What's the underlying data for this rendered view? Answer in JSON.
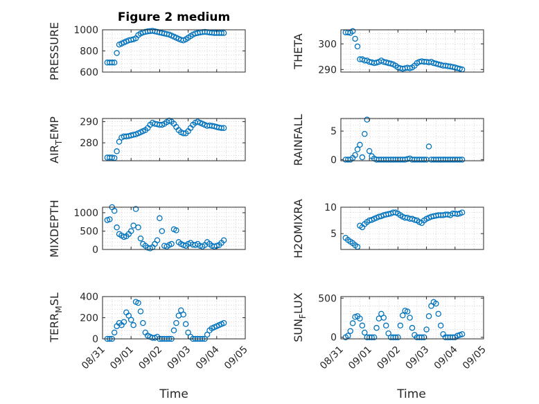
{
  "figure": {
    "title": "Figure 2 medium",
    "xlabel": "Time",
    "marker_color": "#0072BD",
    "x_ticks": [
      "08/31",
      "09/01",
      "09/02",
      "09/03",
      "09/04",
      "09/05"
    ]
  },
  "chart_data": [
    {
      "type": "scatter",
      "column": "left",
      "ylabel": "PRESSURE",
      "ylim": [
        600,
        1000
      ],
      "yticks": [
        600,
        800,
        1000
      ],
      "x": [
        "08/31 04:00",
        "08/31 06:00",
        "08/31 08:00",
        "08/31 10:00",
        "08/31 12:00",
        "08/31 14:00",
        "08/31 16:00",
        "08/31 18:00",
        "08/31 20:00",
        "08/31 22:00",
        "09/01 00:00",
        "09/01 02:00",
        "09/01 04:00",
        "09/01 06:00",
        "09/01 08:00",
        "09/01 10:00",
        "09/01 12:00",
        "09/01 14:00",
        "09/01 16:00",
        "09/01 18:00",
        "09/01 20:00",
        "09/01 22:00",
        "09/02 00:00",
        "09/02 02:00",
        "09/02 04:00",
        "09/02 06:00",
        "09/02 08:00",
        "09/02 10:00",
        "09/02 12:00",
        "09/02 14:00",
        "09/02 16:00",
        "09/02 18:00",
        "09/02 20:00",
        "09/02 22:00",
        "09/03 00:00",
        "09/03 02:00",
        "09/03 04:00",
        "09/03 06:00",
        "09/03 08:00",
        "09/03 10:00",
        "09/03 12:00",
        "09/03 14:00",
        "09/03 16:00",
        "09/03 18:00",
        "09/03 20:00",
        "09/03 22:00",
        "09/04 00:00",
        "09/04 02:00",
        "09/04 04:00",
        "09/04 06:00"
      ],
      "y": [
        690,
        690,
        690,
        690,
        780,
        860,
        870,
        880,
        890,
        900,
        905,
        910,
        920,
        950,
        965,
        975,
        980,
        985,
        988,
        990,
        985,
        980,
        975,
        970,
        965,
        960,
        955,
        945,
        935,
        925,
        915,
        905,
        900,
        910,
        925,
        940,
        955,
        965,
        970,
        975,
        978,
        980,
        978,
        975,
        972,
        970,
        970,
        970,
        970,
        970
      ]
    },
    {
      "type": "scatter",
      "column": "right",
      "ylabel": "THETA",
      "ylim": [
        289,
        305.5
      ],
      "yticks": [
        290,
        300
      ],
      "x": [
        "08/31 04:00",
        "08/31 06:00",
        "08/31 08:00",
        "08/31 10:00",
        "08/31 12:00",
        "08/31 14:00",
        "08/31 16:00",
        "08/31 18:00",
        "08/31 20:00",
        "08/31 22:00",
        "09/01 00:00",
        "09/01 02:00",
        "09/01 04:00",
        "09/01 06:00",
        "09/01 08:00",
        "09/01 10:00",
        "09/01 12:00",
        "09/01 14:00",
        "09/01 16:00",
        "09/01 18:00",
        "09/01 20:00",
        "09/01 22:00",
        "09/02 00:00",
        "09/02 02:00",
        "09/02 04:00",
        "09/02 06:00",
        "09/02 08:00",
        "09/02 10:00",
        "09/02 12:00",
        "09/02 14:00",
        "09/02 16:00",
        "09/02 18:00",
        "09/02 20:00",
        "09/02 22:00",
        "09/03 00:00",
        "09/03 02:00",
        "09/03 04:00",
        "09/03 06:00",
        "09/03 08:00",
        "09/03 10:00",
        "09/03 12:00",
        "09/03 14:00",
        "09/03 16:00",
        "09/03 18:00",
        "09/03 20:00",
        "09/03 22:00",
        "09/04 00:00",
        "09/04 02:00",
        "09/04 04:00",
        "09/04 06:00"
      ],
      "y": [
        304.5,
        304.5,
        304.3,
        305,
        302,
        299,
        294,
        294,
        293.5,
        293.5,
        293,
        292.8,
        292.5,
        292.7,
        293,
        293.5,
        293,
        292.8,
        292.5,
        292.3,
        292,
        291.5,
        290.8,
        290.5,
        290.3,
        290.5,
        290.7,
        290.5,
        290.8,
        291.5,
        292.5,
        293,
        293.2,
        293,
        293,
        292.8,
        293,
        292.5,
        292.3,
        292,
        291.8,
        291.5,
        291.5,
        291.3,
        291.2,
        291,
        290.8,
        290.5,
        290.3,
        290
      ]
    },
    {
      "type": "scatter",
      "column": "left",
      "ylabel": "AIR_TEMP",
      "ylim": [
        271.5,
        291.5
      ],
      "yticks": [
        280,
        290
      ],
      "x": [
        "08/31 04:00",
        "08/31 06:00",
        "08/31 08:00",
        "08/31 10:00",
        "08/31 12:00",
        "08/31 14:00",
        "08/31 16:00",
        "08/31 18:00",
        "08/31 20:00",
        "08/31 22:00",
        "09/01 00:00",
        "09/01 02:00",
        "09/01 04:00",
        "09/01 06:00",
        "09/01 08:00",
        "09/01 10:00",
        "09/01 12:00",
        "09/01 14:00",
        "09/01 16:00",
        "09/01 18:00",
        "09/01 20:00",
        "09/01 22:00",
        "09/02 00:00",
        "09/02 02:00",
        "09/02 04:00",
        "09/02 06:00",
        "09/02 08:00",
        "09/02 10:00",
        "09/02 12:00",
        "09/02 14:00",
        "09/02 16:00",
        "09/02 18:00",
        "09/02 20:00",
        "09/02 22:00",
        "09/03 00:00",
        "09/03 02:00",
        "09/03 04:00",
        "09/03 06:00",
        "09/03 08:00",
        "09/03 10:00",
        "09/03 12:00",
        "09/03 14:00",
        "09/03 16:00",
        "09/03 18:00",
        "09/03 20:00",
        "09/03 22:00",
        "09/04 00:00",
        "09/04 02:00",
        "09/04 04:00",
        "09/04 06:00"
      ],
      "y": [
        273,
        273,
        273,
        272.8,
        276,
        280.5,
        282.5,
        283,
        283,
        283.2,
        283.5,
        283.8,
        284,
        284.5,
        285,
        285.5,
        286,
        287,
        288.5,
        289.5,
        289,
        288.8,
        288.5,
        288.5,
        289,
        289.8,
        290.5,
        290,
        289,
        287.5,
        286,
        285,
        284.5,
        284.5,
        285.5,
        287,
        288.5,
        289.5,
        290,
        289.5,
        289,
        288.5,
        288,
        288.2,
        288,
        287.8,
        287.5,
        287.2,
        287,
        287
      ]
    },
    {
      "type": "scatter",
      "column": "right",
      "ylabel": "RAINFALL",
      "ylim": [
        -0.2,
        7.2
      ],
      "yticks": [
        0,
        5
      ],
      "x": [
        "08/31 04:00",
        "08/31 06:00",
        "08/31 08:00",
        "08/31 10:00",
        "08/31 12:00",
        "08/31 14:00",
        "08/31 16:00",
        "08/31 18:00",
        "08/31 20:00",
        "08/31 22:00",
        "09/01 00:00",
        "09/01 02:00",
        "09/01 04:00",
        "09/01 06:00",
        "09/01 08:00",
        "09/01 10:00",
        "09/01 12:00",
        "09/01 14:00",
        "09/01 16:00",
        "09/01 18:00",
        "09/01 20:00",
        "09/01 22:00",
        "09/02 00:00",
        "09/02 02:00",
        "09/02 04:00",
        "09/02 06:00",
        "09/02 08:00",
        "09/02 10:00",
        "09/02 12:00",
        "09/02 14:00",
        "09/02 16:00",
        "09/02 18:00",
        "09/02 20:00",
        "09/02 22:00",
        "09/03 00:00",
        "09/03 02:00",
        "09/03 04:00",
        "09/03 06:00",
        "09/03 08:00",
        "09/03 10:00",
        "09/03 12:00",
        "09/03 14:00",
        "09/03 16:00",
        "09/03 18:00",
        "09/03 20:00",
        "09/03 22:00",
        "09/04 00:00",
        "09/04 02:00",
        "09/04 04:00",
        "09/04 06:00"
      ],
      "y": [
        0,
        0,
        0,
        0.3,
        0.8,
        1.8,
        2.6,
        0.4,
        4.5,
        7,
        1.5,
        0.6,
        0.2,
        0,
        0,
        0,
        0,
        0,
        0,
        0,
        0,
        0,
        0,
        0,
        0,
        0,
        0.1,
        0.2,
        0,
        0,
        0,
        0,
        0,
        0,
        0,
        2.3,
        0,
        0,
        0,
        0,
        0,
        0,
        0,
        0,
        0,
        0,
        0,
        0,
        0,
        0
      ]
    },
    {
      "type": "scatter",
      "column": "left",
      "ylabel": "MIXDEPTH",
      "ylim": [
        0,
        1150
      ],
      "yticks": [
        0,
        500,
        1000
      ],
      "x": [
        "08/31 04:00",
        "08/31 06:00",
        "08/31 08:00",
        "08/31 10:00",
        "08/31 12:00",
        "08/31 14:00",
        "08/31 16:00",
        "08/31 18:00",
        "08/31 20:00",
        "08/31 22:00",
        "09/01 00:00",
        "09/01 02:00",
        "09/01 04:00",
        "09/01 06:00",
        "09/01 08:00",
        "09/01 10:00",
        "09/01 12:00",
        "09/01 14:00",
        "09/01 16:00",
        "09/01 18:00",
        "09/01 20:00",
        "09/01 22:00",
        "09/02 00:00",
        "09/02 02:00",
        "09/02 04:00",
        "09/02 06:00",
        "09/02 08:00",
        "09/02 10:00",
        "09/02 12:00",
        "09/02 14:00",
        "09/02 16:00",
        "09/02 18:00",
        "09/02 20:00",
        "09/02 22:00",
        "09/03 00:00",
        "09/03 02:00",
        "09/03 04:00",
        "09/03 06:00",
        "09/03 08:00",
        "09/03 10:00",
        "09/03 12:00",
        "09/03 14:00",
        "09/03 16:00",
        "09/03 18:00",
        "09/03 20:00",
        "09/03 22:00",
        "09/04 00:00",
        "09/04 02:00",
        "09/04 04:00",
        "09/04 06:00"
      ],
      "y": [
        800,
        820,
        1150,
        1050,
        600,
        420,
        380,
        340,
        360,
        420,
        500,
        650,
        1100,
        600,
        300,
        150,
        100,
        50,
        30,
        60,
        150,
        250,
        850,
        500,
        100,
        80,
        120,
        150,
        550,
        520,
        200,
        150,
        120,
        100,
        150,
        180,
        130,
        120,
        150,
        100,
        80,
        120,
        200,
        150,
        100,
        80,
        100,
        120,
        180,
        250
      ]
    },
    {
      "type": "scatter",
      "column": "right",
      "ylabel": "H2OMIXRA",
      "ylim": [
        2,
        10
      ],
      "yticks": [
        5,
        10
      ],
      "x": [
        "08/31 04:00",
        "08/31 06:00",
        "08/31 08:00",
        "08/31 10:00",
        "08/31 12:00",
        "08/31 14:00",
        "08/31 16:00",
        "08/31 18:00",
        "08/31 20:00",
        "08/31 22:00",
        "09/01 00:00",
        "09/01 02:00",
        "09/01 04:00",
        "09/01 06:00",
        "09/01 08:00",
        "09/01 10:00",
        "09/01 12:00",
        "09/01 14:00",
        "09/01 16:00",
        "09/01 18:00",
        "09/01 20:00",
        "09/01 22:00",
        "09/02 00:00",
        "09/02 02:00",
        "09/02 04:00",
        "09/02 06:00",
        "09/02 08:00",
        "09/02 10:00",
        "09/02 12:00",
        "09/02 14:00",
        "09/02 16:00",
        "09/02 18:00",
        "09/02 20:00",
        "09/02 22:00",
        "09/03 00:00",
        "09/03 02:00",
        "09/03 04:00",
        "09/03 06:00",
        "09/03 08:00",
        "09/03 10:00",
        "09/03 12:00",
        "09/03 14:00",
        "09/03 16:00",
        "09/03 18:00",
        "09/03 20:00",
        "09/03 22:00",
        "09/04 00:00",
        "09/04 02:00",
        "09/04 04:00",
        "09/04 06:00"
      ],
      "y": [
        4.2,
        3.8,
        3.5,
        3.2,
        2.8,
        2.5,
        6.5,
        6.2,
        6.8,
        7.2,
        7.5,
        7.6,
        7.8,
        8,
        8.2,
        8.3,
        8.5,
        8.6,
        8.7,
        8.8,
        9,
        9,
        8.8,
        8.5,
        8.2,
        8,
        8,
        7.8,
        7.8,
        7.6,
        7.5,
        7.2,
        7,
        7.5,
        7.8,
        8,
        8.2,
        8.3,
        8.4,
        8.5,
        8.5,
        8.5,
        8.6,
        8.6,
        8.5,
        8.8,
        8.8,
        8.7,
        8.8,
        9
      ]
    },
    {
      "type": "scatter",
      "column": "left",
      "ylabel": "TERR_MSL",
      "ylim": [
        0,
        400
      ],
      "yticks": [
        0,
        200,
        400
      ],
      "x": [
        "08/31 04:00",
        "08/31 06:00",
        "08/31 08:00",
        "08/31 10:00",
        "08/31 12:00",
        "08/31 14:00",
        "08/31 16:00",
        "08/31 18:00",
        "08/31 20:00",
        "08/31 22:00",
        "09/01 00:00",
        "09/01 02:00",
        "09/01 04:00",
        "09/01 06:00",
        "09/01 08:00",
        "09/01 10:00",
        "09/01 12:00",
        "09/01 14:00",
        "09/01 16:00",
        "09/01 18:00",
        "09/01 20:00",
        "09/01 22:00",
        "09/02 00:00",
        "09/02 02:00",
        "09/02 04:00",
        "09/02 06:00",
        "09/02 08:00",
        "09/02 10:00",
        "09/02 12:00",
        "09/02 14:00",
        "09/02 16:00",
        "09/02 18:00",
        "09/02 20:00",
        "09/02 22:00",
        "09/03 00:00",
        "09/03 02:00",
        "09/03 04:00",
        "09/03 06:00",
        "09/03 08:00",
        "09/03 10:00",
        "09/03 12:00",
        "09/03 14:00",
        "09/03 16:00",
        "09/03 18:00",
        "09/03 20:00",
        "09/03 22:00",
        "09/04 00:00",
        "09/04 02:00",
        "09/04 04:00",
        "09/04 06:00"
      ],
      "y": [
        0,
        0,
        0,
        60,
        120,
        150,
        130,
        160,
        250,
        220,
        180,
        130,
        350,
        340,
        260,
        150,
        60,
        30,
        20,
        10,
        10,
        20,
        0,
        0,
        0,
        0,
        0,
        0,
        80,
        150,
        220,
        270,
        230,
        140,
        60,
        20,
        0,
        0,
        0,
        0,
        0,
        0,
        40,
        80,
        100,
        110,
        120,
        130,
        140,
        150
      ]
    },
    {
      "type": "scatter",
      "column": "right",
      "ylabel": "SUN_FLUX",
      "ylim": [
        -20,
        520
      ],
      "yticks": [
        0,
        500
      ],
      "x": [
        "08/31 04:00",
        "08/31 06:00",
        "08/31 08:00",
        "08/31 10:00",
        "08/31 12:00",
        "08/31 14:00",
        "08/31 16:00",
        "08/31 18:00",
        "08/31 20:00",
        "08/31 22:00",
        "09/01 00:00",
        "09/01 02:00",
        "09/01 04:00",
        "09/01 06:00",
        "09/01 08:00",
        "09/01 10:00",
        "09/01 12:00",
        "09/01 14:00",
        "09/01 16:00",
        "09/01 18:00",
        "09/01 20:00",
        "09/01 22:00",
        "09/02 00:00",
        "09/02 02:00",
        "09/02 04:00",
        "09/02 06:00",
        "09/02 08:00",
        "09/02 10:00",
        "09/02 12:00",
        "09/02 14:00",
        "09/02 16:00",
        "09/02 18:00",
        "09/02 20:00",
        "09/02 22:00",
        "09/03 00:00",
        "09/03 02:00",
        "09/03 04:00",
        "09/03 06:00",
        "09/03 08:00",
        "09/03 10:00",
        "09/03 12:00",
        "09/03 14:00",
        "09/03 16:00",
        "09/03 18:00",
        "09/03 20:00",
        "09/03 22:00",
        "09/04 00:00",
        "09/04 02:00",
        "09/04 04:00",
        "09/04 06:00"
      ],
      "y": [
        0,
        20,
        80,
        180,
        260,
        270,
        240,
        150,
        60,
        0,
        0,
        0,
        0,
        120,
        240,
        300,
        250,
        150,
        50,
        0,
        0,
        0,
        0,
        150,
        280,
        340,
        330,
        250,
        120,
        30,
        0,
        0,
        0,
        0,
        100,
        270,
        400,
        450,
        430,
        300,
        150,
        40,
        0,
        0,
        0,
        0,
        0,
        20,
        30,
        40
      ]
    }
  ]
}
